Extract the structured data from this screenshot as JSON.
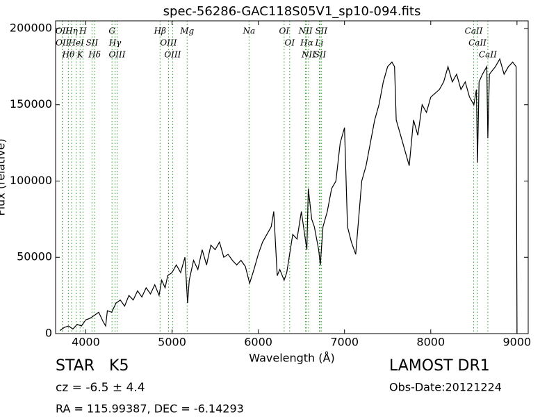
{
  "chart_data": {
    "type": "line",
    "title": "spec-56286-GAC118S05V1_sp10-094.fits",
    "x_label": "Wavelength (Å)",
    "y_label": "Flux (relative)",
    "object_class": "STAR   K5",
    "redshift": "cz = -6.5 ± 4.4",
    "coordinates": "RA = 115.99387, DEC = -6.14293",
    "survey": "LAMOST DR1",
    "obs_date": "Obs-Date:20121224",
    "xlim": [
      3650,
      9130
    ],
    "ylim": [
      0,
      205000
    ],
    "xticks": [
      4000,
      5000,
      6000,
      7000,
      8000,
      9000
    ],
    "yticks": [
      0,
      50000,
      100000,
      150000,
      200000
    ],
    "line_color": "#2a9d2a",
    "lines": [
      {
        "wavelength": 3727,
        "label": "OII"
      },
      {
        "wavelength": 3729,
        "label": "OII"
      },
      {
        "wavelength": 3798,
        "label": "Hθ"
      },
      {
        "wavelength": 3835,
        "label": "Hη"
      },
      {
        "wavelength": 3889,
        "label": "HeI"
      },
      {
        "wavelength": 3934,
        "label": "K"
      },
      {
        "wavelength": 3968,
        "label": "H"
      },
      {
        "wavelength": 4072,
        "label": "SII"
      },
      {
        "wavelength": 4102,
        "label": "Hδ"
      },
      {
        "wavelength": 4304,
        "label": "G"
      },
      {
        "wavelength": 4340,
        "label": "Hγ"
      },
      {
        "wavelength": 4363,
        "label": "OIII"
      },
      {
        "wavelength": 4861,
        "label": "Hβ"
      },
      {
        "wavelength": 4959,
        "label": "OIII"
      },
      {
        "wavelength": 5007,
        "label": "OIII"
      },
      {
        "wavelength": 5175,
        "label": "Mg"
      },
      {
        "wavelength": 5893,
        "label": "Na"
      },
      {
        "wavelength": 6300,
        "label": "OI"
      },
      {
        "wavelength": 6364,
        "label": "OI"
      },
      {
        "wavelength": 6548,
        "label": "NII"
      },
      {
        "wavelength": 6563,
        "label": "Hα"
      },
      {
        "wavelength": 6583,
        "label": "NII"
      },
      {
        "wavelength": 6708,
        "label": "Li"
      },
      {
        "wavelength": 6716,
        "label": "SII"
      },
      {
        "wavelength": 6731,
        "label": "SII"
      },
      {
        "wavelength": 8498,
        "label": "CaII"
      },
      {
        "wavelength": 8542,
        "label": "CaII"
      },
      {
        "wavelength": 8662,
        "label": "CaII"
      }
    ],
    "series": [
      {
        "name": "flux",
        "color": "#000000",
        "x": [
          3700,
          3750,
          3800,
          3850,
          3900,
          3950,
          4000,
          4050,
          4100,
          4150,
          4200,
          4230,
          4250,
          4300,
          4350,
          4400,
          4450,
          4500,
          4550,
          4600,
          4650,
          4700,
          4750,
          4800,
          4850,
          4880,
          4920,
          4950,
          5000,
          5050,
          5100,
          5150,
          5180,
          5200,
          5250,
          5300,
          5350,
          5400,
          5450,
          5500,
          5550,
          5600,
          5650,
          5700,
          5750,
          5800,
          5850,
          5900,
          5950,
          6000,
          6050,
          6100,
          6150,
          6180,
          6220,
          6250,
          6300,
          6330,
          6380,
          6400,
          6450,
          6500,
          6563,
          6580,
          6620,
          6650,
          6700,
          6720,
          6750,
          6800,
          6850,
          6900,
          6950,
          7000,
          7035,
          7080,
          7130,
          7200,
          7250,
          7300,
          7350,
          7400,
          7450,
          7500,
          7550,
          7580,
          7600,
          7650,
          7700,
          7750,
          7800,
          7850,
          7900,
          7950,
          8000,
          8100,
          8150,
          8200,
          8250,
          8300,
          8350,
          8400,
          8450,
          8500,
          8530,
          8542,
          8560,
          8600,
          8650,
          8662,
          8680,
          8750,
          8800,
          8850,
          8900,
          8950,
          8990,
          9000
        ],
        "values": [
          2000,
          4000,
          5000,
          3000,
          6000,
          5000,
          9000,
          10000,
          12000,
          14000,
          8000,
          5000,
          15000,
          14000,
          20000,
          22000,
          18000,
          25000,
          22000,
          28000,
          24000,
          30000,
          26000,
          32000,
          25000,
          35000,
          30000,
          38000,
          40000,
          45000,
          40000,
          50000,
          20000,
          35000,
          48000,
          42000,
          55000,
          45000,
          58000,
          55000,
          60000,
          50000,
          52000,
          48000,
          45000,
          48000,
          44000,
          33000,
          42000,
          52000,
          60000,
          65000,
          70000,
          80000,
          38000,
          42000,
          35000,
          40000,
          58000,
          65000,
          62000,
          80000,
          55000,
          95000,
          75000,
          70000,
          55000,
          45000,
          70000,
          80000,
          95000,
          100000,
          125000,
          135000,
          70000,
          60000,
          52000,
          100000,
          110000,
          125000,
          140000,
          150000,
          165000,
          175000,
          178000,
          175000,
          140000,
          130000,
          120000,
          110000,
          140000,
          130000,
          150000,
          145000,
          155000,
          160000,
          165000,
          175000,
          165000,
          170000,
          160000,
          165000,
          155000,
          150000,
          160000,
          112000,
          165000,
          170000,
          175000,
          128000,
          170000,
          175000,
          180000,
          170000,
          175000,
          178000,
          175000,
          0
        ]
      }
    ]
  }
}
